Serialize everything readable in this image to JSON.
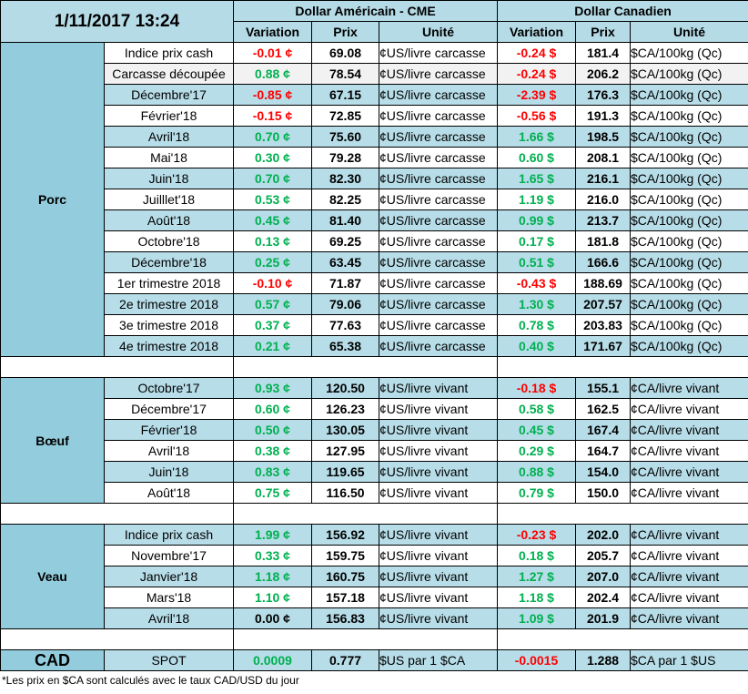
{
  "header": {
    "datetime": "1/11/2017 13:24",
    "usd_group": "Dollar Américain - CME",
    "cad_group": "Dollar Canadien",
    "col_variation": "Variation",
    "col_prix": "Prix",
    "col_unite": "Unité"
  },
  "sections": [
    {
      "name": "Porc",
      "rows": [
        {
          "label": "Indice prix cash",
          "usd_var": "-0.01 ¢",
          "usd_prix": "69.08",
          "usd_unit": "¢US/livre carcasse",
          "cad_var": "-0.24 $",
          "cad_prix": "181.4",
          "cad_unit": "$CA/100kg (Qc)",
          "usd_sign": "neg",
          "cad_sign": "neg",
          "shade": "light"
        },
        {
          "label": "Carcasse découpée",
          "usd_var": "0.88 ¢",
          "usd_prix": "78.54",
          "usd_unit": "¢US/livre carcasse",
          "cad_var": "-0.24 $",
          "cad_prix": "206.2",
          "cad_unit": "$CA/100kg (Qc)",
          "usd_sign": "pos",
          "cad_sign": "neg",
          "shade": "grey"
        },
        {
          "label": "Décembre'17",
          "usd_var": "-0.85 ¢",
          "usd_prix": "67.15",
          "usd_unit": "¢US/livre carcasse",
          "cad_var": "-2.39 $",
          "cad_prix": "176.3",
          "cad_unit": "$CA/100kg (Qc)",
          "usd_sign": "neg",
          "cad_sign": "neg",
          "shade": "blue"
        },
        {
          "label": "Février'18",
          "usd_var": "-0.15 ¢",
          "usd_prix": "72.85",
          "usd_unit": "¢US/livre carcasse",
          "cad_var": "-0.56 $",
          "cad_prix": "191.3",
          "cad_unit": "$CA/100kg (Qc)",
          "usd_sign": "neg",
          "cad_sign": "neg",
          "shade": "light"
        },
        {
          "label": "Avril'18",
          "usd_var": "0.70 ¢",
          "usd_prix": "75.60",
          "usd_unit": "¢US/livre carcasse",
          "cad_var": "1.66 $",
          "cad_prix": "198.5",
          "cad_unit": "$CA/100kg (Qc)",
          "usd_sign": "pos",
          "cad_sign": "pos",
          "shade": "blue"
        },
        {
          "label": "Mai'18",
          "usd_var": "0.30 ¢",
          "usd_prix": "79.28",
          "usd_unit": "¢US/livre carcasse",
          "cad_var": "0.60 $",
          "cad_prix": "208.1",
          "cad_unit": "$CA/100kg (Qc)",
          "usd_sign": "pos",
          "cad_sign": "pos",
          "shade": "light"
        },
        {
          "label": "Juin'18",
          "usd_var": "0.70 ¢",
          "usd_prix": "82.30",
          "usd_unit": "¢US/livre carcasse",
          "cad_var": "1.65 $",
          "cad_prix": "216.1",
          "cad_unit": "$CA/100kg (Qc)",
          "usd_sign": "pos",
          "cad_sign": "pos",
          "shade": "blue"
        },
        {
          "label": "Juilllet'18",
          "usd_var": "0.53 ¢",
          "usd_prix": "82.25",
          "usd_unit": "¢US/livre carcasse",
          "cad_var": "1.19 $",
          "cad_prix": "216.0",
          "cad_unit": "$CA/100kg (Qc)",
          "usd_sign": "pos",
          "cad_sign": "pos",
          "shade": "light"
        },
        {
          "label": "Août'18",
          "usd_var": "0.45 ¢",
          "usd_prix": "81.40",
          "usd_unit": "¢US/livre carcasse",
          "cad_var": "0.99 $",
          "cad_prix": "213.7",
          "cad_unit": "$CA/100kg (Qc)",
          "usd_sign": "pos",
          "cad_sign": "pos",
          "shade": "blue"
        },
        {
          "label": "Octobre'18",
          "usd_var": "0.13 ¢",
          "usd_prix": "69.25",
          "usd_unit": "¢US/livre carcasse",
          "cad_var": "0.17 $",
          "cad_prix": "181.8",
          "cad_unit": "$CA/100kg (Qc)",
          "usd_sign": "pos",
          "cad_sign": "pos",
          "shade": "light"
        },
        {
          "label": "Décembre'18",
          "usd_var": "0.25 ¢",
          "usd_prix": "63.45",
          "usd_unit": "¢US/livre carcasse",
          "cad_var": "0.51 $",
          "cad_prix": "166.6",
          "cad_unit": "$CA/100kg (Qc)",
          "usd_sign": "pos",
          "cad_sign": "pos",
          "shade": "blue"
        },
        {
          "label": "1er trimestre 2018",
          "usd_var": "-0.10 ¢",
          "usd_prix": "71.87",
          "usd_unit": "¢US/livre carcasse",
          "cad_var": "-0.43 $",
          "cad_prix": "188.69",
          "cad_unit": "$CA/100kg (Qc)",
          "usd_sign": "neg",
          "cad_sign": "neg",
          "shade": "light"
        },
        {
          "label": "2e trimestre 2018",
          "usd_var": "0.57 ¢",
          "usd_prix": "79.06",
          "usd_unit": "¢US/livre carcasse",
          "cad_var": "1.30 $",
          "cad_prix": "207.57",
          "cad_unit": "$CA/100kg (Qc)",
          "usd_sign": "pos",
          "cad_sign": "pos",
          "shade": "blue"
        },
        {
          "label": "3e trimestre 2018",
          "usd_var": "0.37 ¢",
          "usd_prix": "77.63",
          "usd_unit": "¢US/livre carcasse",
          "cad_var": "0.78 $",
          "cad_prix": "203.83",
          "cad_unit": "$CA/100kg (Qc)",
          "usd_sign": "pos",
          "cad_sign": "pos",
          "shade": "light"
        },
        {
          "label": "4e trimestre 2018",
          "usd_var": "0.21 ¢",
          "usd_prix": "65.38",
          "usd_unit": "¢US/livre carcasse",
          "cad_var": "0.40 $",
          "cad_prix": "171.67",
          "cad_unit": "$CA/100kg (Qc)",
          "usd_sign": "pos",
          "cad_sign": "pos",
          "shade": "blue"
        }
      ]
    },
    {
      "name": "Bœuf",
      "rows": [
        {
          "label": "Octobre'17",
          "usd_var": "0.93 ¢",
          "usd_prix": "120.50",
          "usd_unit": "¢US/livre vivant",
          "cad_var": "-0.18 $",
          "cad_prix": "155.1",
          "cad_unit": "¢CA/livre vivant",
          "usd_sign": "pos",
          "cad_sign": "neg",
          "shade": "blue"
        },
        {
          "label": "Décembre'17",
          "usd_var": "0.60 ¢",
          "usd_prix": "126.23",
          "usd_unit": "¢US/livre vivant",
          "cad_var": "0.58 $",
          "cad_prix": "162.5",
          "cad_unit": "¢CA/livre vivant",
          "usd_sign": "pos",
          "cad_sign": "pos",
          "shade": "light"
        },
        {
          "label": "Février'18",
          "usd_var": "0.50 ¢",
          "usd_prix": "130.05",
          "usd_unit": "¢US/livre vivant",
          "cad_var": "0.45 $",
          "cad_prix": "167.4",
          "cad_unit": "¢CA/livre vivant",
          "usd_sign": "pos",
          "cad_sign": "pos",
          "shade": "blue"
        },
        {
          "label": "Avril'18",
          "usd_var": "0.38 ¢",
          "usd_prix": "127.95",
          "usd_unit": "¢US/livre vivant",
          "cad_var": "0.29 $",
          "cad_prix": "164.7",
          "cad_unit": "¢CA/livre vivant",
          "usd_sign": "pos",
          "cad_sign": "pos",
          "shade": "light"
        },
        {
          "label": "Juin'18",
          "usd_var": "0.83 ¢",
          "usd_prix": "119.65",
          "usd_unit": "¢US/livre vivant",
          "cad_var": "0.88 $",
          "cad_prix": "154.0",
          "cad_unit": "¢CA/livre vivant",
          "usd_sign": "pos",
          "cad_sign": "pos",
          "shade": "blue"
        },
        {
          "label": "Août'18",
          "usd_var": "0.75 ¢",
          "usd_prix": "116.50",
          "usd_unit": "¢US/livre vivant",
          "cad_var": "0.79 $",
          "cad_prix": "150.0",
          "cad_unit": "¢CA/livre vivant",
          "usd_sign": "pos",
          "cad_sign": "pos",
          "shade": "light"
        }
      ]
    },
    {
      "name": "Veau",
      "rows": [
        {
          "label": "Indice prix cash",
          "usd_var": "1.99 ¢",
          "usd_prix": "156.92",
          "usd_unit": "¢US/livre vivant",
          "cad_var": "-0.23 $",
          "cad_prix": "202.0",
          "cad_unit": "¢CA/livre vivant",
          "usd_sign": "pos",
          "cad_sign": "neg",
          "shade": "blue"
        },
        {
          "label": "Novembre'17",
          "usd_var": "0.33 ¢",
          "usd_prix": "159.75",
          "usd_unit": "¢US/livre vivant",
          "cad_var": "0.18 $",
          "cad_prix": "205.7",
          "cad_unit": "¢CA/livre vivant",
          "usd_sign": "pos",
          "cad_sign": "pos",
          "shade": "light"
        },
        {
          "label": "Janvier'18",
          "usd_var": "1.18 ¢",
          "usd_prix": "160.75",
          "usd_unit": "¢US/livre vivant",
          "cad_var": "1.27 $",
          "cad_prix": "207.0",
          "cad_unit": "¢CA/livre vivant",
          "usd_sign": "pos",
          "cad_sign": "pos",
          "shade": "blue"
        },
        {
          "label": "Mars'18",
          "usd_var": "1.10 ¢",
          "usd_prix": "157.18",
          "usd_unit": "¢US/livre vivant",
          "cad_var": "1.18 $",
          "cad_prix": "202.4",
          "cad_unit": "¢CA/livre vivant",
          "usd_sign": "pos",
          "cad_sign": "pos",
          "shade": "light"
        },
        {
          "label": "Avril'18",
          "usd_var": "0.00 ¢",
          "usd_prix": "156.83",
          "usd_unit": "¢US/livre vivant",
          "cad_var": "1.09 $",
          "cad_prix": "201.9",
          "cad_unit": "¢CA/livre vivant",
          "usd_sign": "zero",
          "cad_sign": "pos",
          "shade": "blue"
        }
      ]
    }
  ],
  "cad_row": {
    "name": "CAD",
    "label": "SPOT",
    "usd_var": "0.0009",
    "usd_prix": "0.777",
    "usd_unit": "$US par 1 $CA",
    "cad_var": "-0.0015",
    "cad_prix": "1.288",
    "cad_unit": "$CA par 1 $US"
  },
  "footnote": "*Les  prix en $CA sont calculés avec le taux CAD/USD du jour",
  "colors": {
    "positive": "#00b050",
    "negative": "#ff0000",
    "header_bg": "#b5dbe6",
    "category_bg": "#93cddd",
    "row_blue": "#b7dde8"
  }
}
